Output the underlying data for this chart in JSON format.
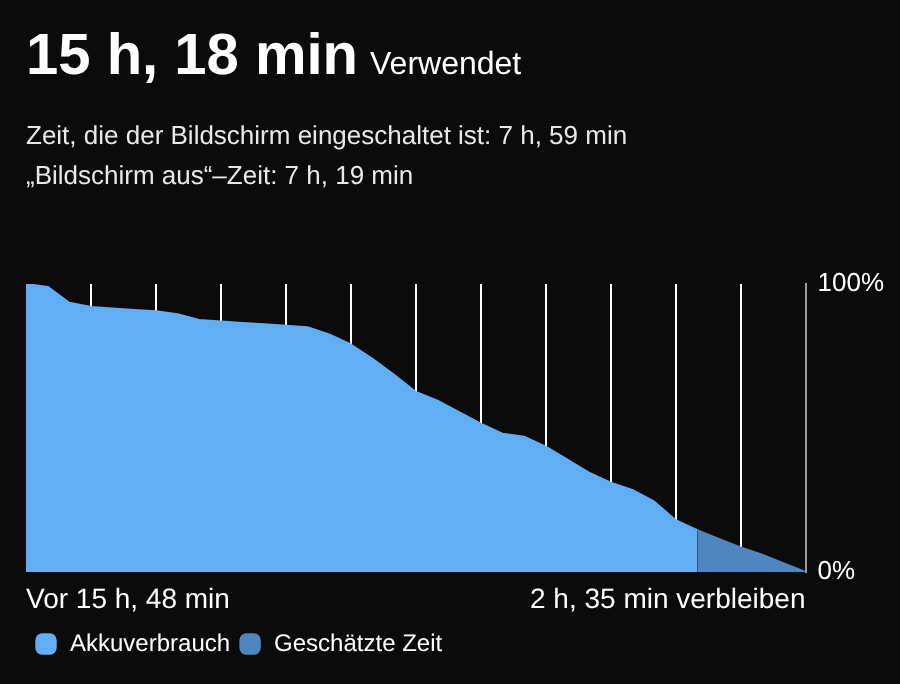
{
  "chart_data": {
    "type": "area",
    "title": "15 h, 18 min",
    "subtitle": "Verwendet",
    "annotations": [
      "Zeit, die der Bildschirm eingeschaltet ist: 7 h, 59 min",
      "„Bildschirm aus“–Zeit: 7 h, 19 min",
      "Vor 15 h, 48 min",
      "2 h, 35 min verbleiben"
    ],
    "categories": [
      null,
      null,
      null,
      null,
      null,
      null,
      null,
      null,
      null,
      null,
      null,
      null,
      null,
      null,
      null,
      null,
      null,
      null,
      null,
      null,
      null,
      null,
      null,
      null,
      null,
      null,
      null,
      null,
      null,
      null,
      null,
      null,
      null,
      null,
      null,
      null,
      null
    ],
    "series": [
      {
        "name": "Akkuverbrauch",
        "color": "#62aef5",
        "values": [
          100,
          99,
          93.5,
          92,
          91.5,
          91,
          90.5,
          89.5,
          87.5,
          87,
          86.5,
          86,
          85.5,
          85,
          82.5,
          79,
          74,
          68.5,
          62.5,
          59.5,
          55.5,
          51.5,
          48,
          47,
          43.5,
          39,
          34.5,
          31,
          28.5,
          24.5,
          18,
          14.5,
          null,
          null,
          null,
          null,
          null
        ]
      },
      {
        "name": "Geschätzte Zeit",
        "color": "#4f86c0",
        "values": [
          null,
          null,
          null,
          null,
          null,
          null,
          null,
          null,
          null,
          null,
          null,
          null,
          null,
          null,
          null,
          null,
          null,
          null,
          null,
          null,
          null,
          null,
          null,
          null,
          null,
          null,
          null,
          null,
          null,
          null,
          null,
          14.5,
          11.5,
          8.5,
          6,
          3,
          0
        ]
      }
    ],
    "ylim": [
      0,
      100
    ],
    "yticks": [
      {
        "value": 100,
        "label": "100%"
      },
      {
        "value": 0,
        "label": "0%"
      }
    ],
    "tick_labels": "y",
    "grid": "x",
    "legend": "bottom left",
    "marker": "none"
  }
}
